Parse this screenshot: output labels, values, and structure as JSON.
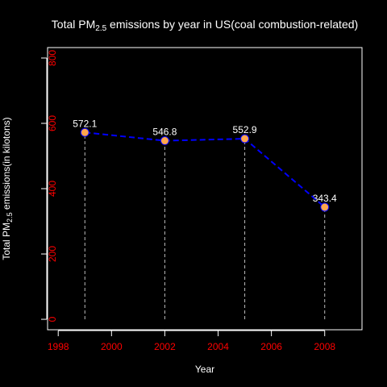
{
  "chart_data": {
    "type": "line",
    "title": {
      "prefix": "Total PM",
      "sub": "2.5",
      "suffix": " emissions by year in US(coal combustion-related)"
    },
    "xlabel": "Year",
    "ylabel": {
      "prefix": "Total PM",
      "sub": "2.5",
      "suffix": " emissions(in kilotons)"
    },
    "x": [
      1999,
      2002,
      2005,
      2008
    ],
    "values": [
      572.1,
      546.8,
      552.9,
      343.4
    ],
    "data_labels": [
      "572.1",
      "546.8",
      "552.9",
      "343.4"
    ],
    "xlim": [
      1997.6,
      2009.4
    ],
    "ylim": [
      -32,
      832
    ],
    "x_ticks": [
      "1998",
      "2000",
      "2002",
      "2004",
      "2006",
      "2008"
    ],
    "y_ticks": [
      "0",
      "200",
      "400",
      "600",
      "800"
    ],
    "grid": false,
    "legend": "none",
    "colors": {
      "background": "#000000",
      "foreground": "#ffffff",
      "tick_labels": "#ff0000",
      "line": "#0000ff",
      "point_fill": "#ffa64d",
      "drop_lines": "#bbbbbb"
    }
  }
}
